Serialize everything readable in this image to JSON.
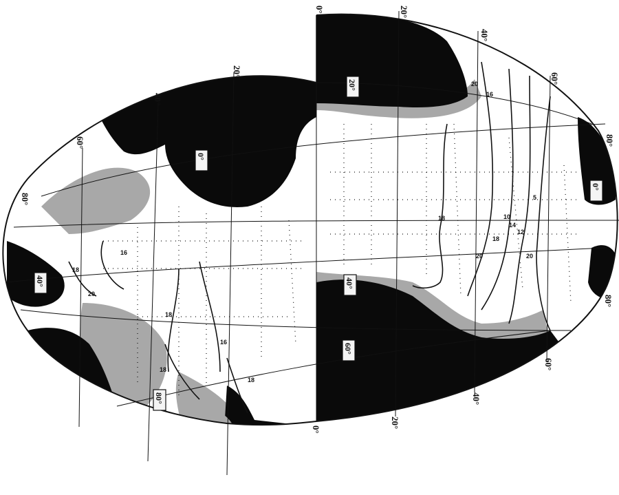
{
  "map": {
    "colors": {
      "land": "#0a0a0a",
      "shelf": "#a8a8a8",
      "ocean": "#ffffff",
      "grid": "#111111",
      "contour": "#111111"
    },
    "meridian_labels": [
      "0°",
      "20°",
      "40°",
      "60°",
      "80°",
      "20°",
      "40°",
      "60°",
      "80°",
      "0°",
      "20°",
      "40°",
      "60°",
      "80°"
    ],
    "boxed_latitude_labels": [
      "20°",
      "0°",
      "0°",
      "40°",
      "40°",
      "60°",
      "80°"
    ],
    "contour_labels": [
      "18",
      "18",
      "20",
      "20",
      "16",
      "10",
      "12",
      "14",
      "5",
      "18",
      "16",
      "18",
      "20",
      "16",
      "18",
      "20",
      "18"
    ]
  }
}
